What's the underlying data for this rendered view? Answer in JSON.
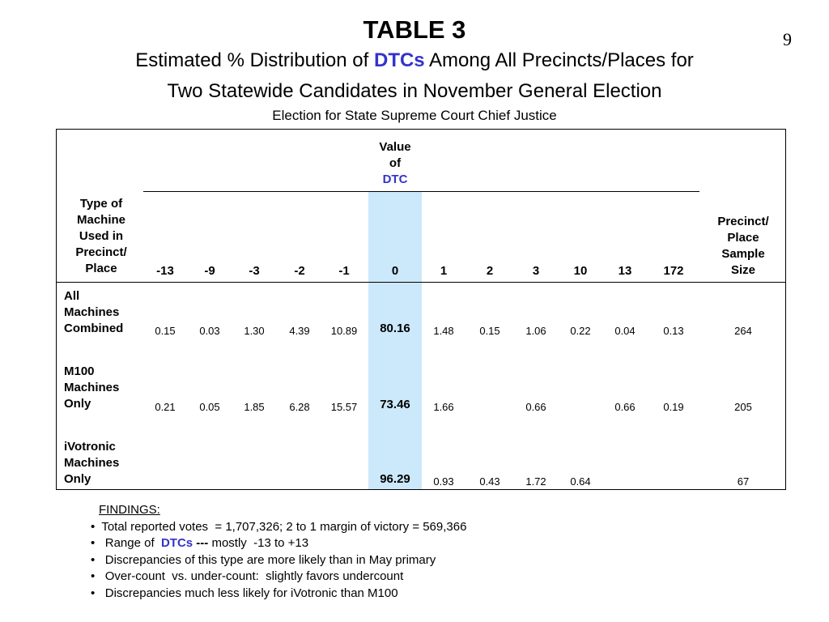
{
  "slide_number": "9",
  "title": "TABLE 3",
  "subtitle_line1_pre": "Estimated % Distribution of ",
  "subtitle_line1_highlight": "DTCs",
  "subtitle_line1_post": " Among All Precincts/Places for",
  "subtitle_line2": "Two Statewide Candidates in November General Election",
  "subtitle_line3": "Election for State Supreme Court Chief Justice",
  "table": {
    "value_header": [
      "Value",
      "of"
    ],
    "value_header_highlight": "DTC",
    "type_header": [
      "Type of",
      "Machine",
      "Used in",
      "Precinct/",
      "Place"
    ],
    "sample_header": [
      "Precinct/",
      "Place",
      "Sample",
      "Size"
    ],
    "columns": [
      "-13",
      "-9",
      "-3",
      "-2",
      "-1",
      "0",
      "1",
      "2",
      "3",
      "10",
      "13",
      "172"
    ],
    "rows": [
      {
        "label": [
          "All",
          "Machines",
          "Combined"
        ],
        "values": [
          "0.15",
          "0.03",
          "1.30",
          "4.39",
          "10.89",
          "80.16",
          "1.48",
          "0.15",
          "1.06",
          "0.22",
          "0.04",
          "0.13"
        ],
        "sample": "264"
      },
      {
        "label": [
          "M100",
          "Machines",
          "Only"
        ],
        "values": [
          "0.21",
          "0.05",
          "1.85",
          "6.28",
          "15.57",
          "73.46",
          "1.66",
          "",
          "0.66",
          "",
          "0.66",
          "0.19"
        ],
        "sample": "205"
      },
      {
        "label": [
          "iVotronic",
          "Machines",
          "Only"
        ],
        "values": [
          "",
          "",
          "",
          "",
          "",
          "96.29",
          "0.93",
          "0.43",
          "1.72",
          "0.64",
          "",
          ""
        ],
        "sample": "67"
      }
    ]
  },
  "findings": {
    "heading": "FINDINGS:",
    "item1": "•  Total reported votes  = 1,707,326; 2 to 1 margin of victory = 569,366",
    "item2_pre": "•   Range of  ",
    "item2_highlight": "DTCs",
    "item2_sep": " ---",
    "item2_post": " mostly  -13 to +13",
    "item3": "•   Discrepancies of this type are more likely than in May primary",
    "item4": "•   Over-count  vs. under-count:  slightly favors undercount",
    "item5": "•   Discrepancies much less likely for iVotronic than M100"
  },
  "colors": {
    "highlight_text": "#3333cc",
    "dtc_column_shade": "#cce8fb"
  }
}
